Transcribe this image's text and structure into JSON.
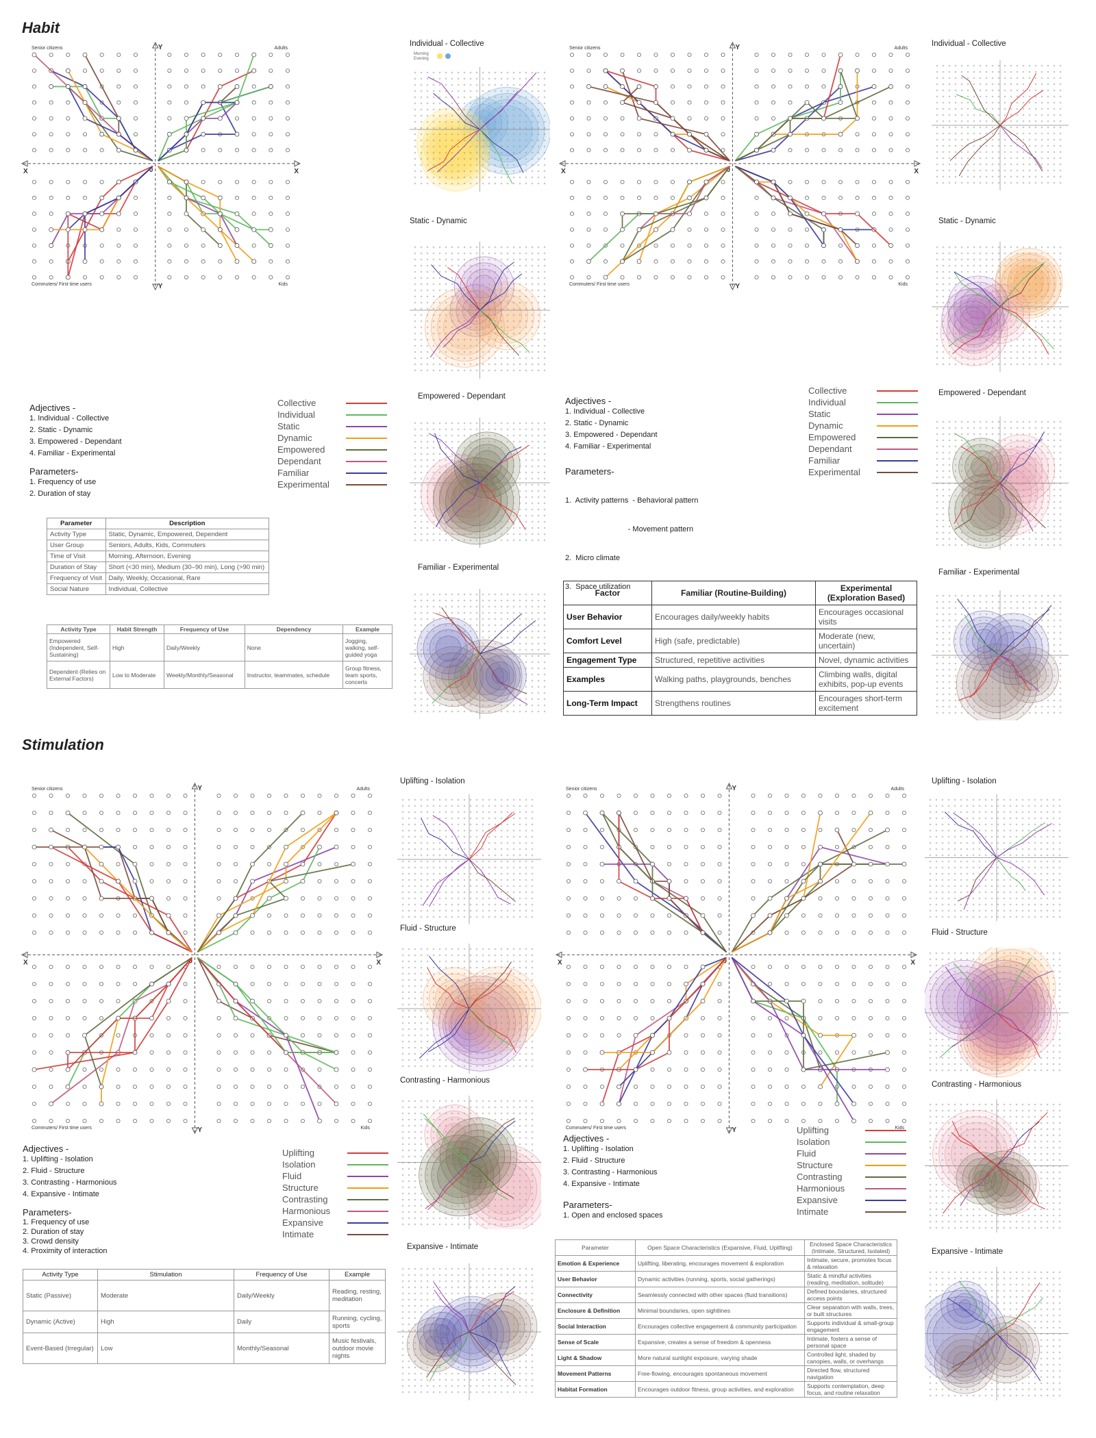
{
  "sections": [
    {
      "title": "Habit",
      "quadrants": {
        "top_left": "Senior citizens",
        "top_right": "Adults",
        "bottom_left": "Commuters/ First time users",
        "bottom_right": "Kids"
      },
      "axes": {
        "x": "X",
        "y": "Y",
        "origin": "0"
      },
      "mini_titles": [
        "Individual - Collective",
        "Static - Dynamic",
        "Empowered - Dependant",
        "Familiar - Experimental"
      ],
      "mini_titles_right": [
        "Individual - Collective",
        "Static - Dynamic",
        "Empowered - Dependant",
        "Familiar - Experimental"
      ],
      "mini_legend": [
        "Morning",
        "Evening"
      ],
      "left_block": {
        "adjectives_head": "Adjectives -",
        "adjectives": [
          "1.  Individual - Collective",
          "2.  Static - Dynamic",
          "3.  Empowered - Dependant",
          "4.  Familiar - Experimental"
        ],
        "parameters_head": "Parameters-",
        "parameters": [
          "1.  Frequency of use",
          "2.  Duration of stay"
        ]
      },
      "right_block": {
        "adjectives_head": "Adjectives -",
        "adjectives": [
          "1.  Individual - Collective",
          "2.  Static - Dynamic",
          "3.  Empowered - Dependant",
          "4.  Familiar - Experimental"
        ],
        "parameters_head": "Parameters-",
        "parameters": [
          "1.  Activity patterns  - Behavioral pattern",
          "                              - Movement pattern",
          "2.  Micro climate",
          "3.  Space utilization"
        ]
      },
      "legend_left": [
        {
          "name": "Collective",
          "color": "#d23b3b"
        },
        {
          "name": "Individual",
          "color": "#5cb85c"
        },
        {
          "name": "Static",
          "color": "#8e44ad"
        },
        {
          "name": "Dynamic",
          "color": "#f39c12"
        },
        {
          "name": "Empowered",
          "color": "#5d6d3f"
        },
        {
          "name": "Dependant",
          "color": "#c0587e"
        },
        {
          "name": "Familiar",
          "color": "#3b3b9e"
        },
        {
          "name": "Experimental",
          "color": "#7b4a3a"
        }
      ],
      "legend_right": [
        {
          "name": "Collective",
          "color": "#d23b3b"
        },
        {
          "name": "Individual",
          "color": "#5cb85c"
        },
        {
          "name": "Static",
          "color": "#8e44ad"
        },
        {
          "name": "Dynamic",
          "color": "#f39c12"
        },
        {
          "name": "Empowered",
          "color": "#5d6d3f"
        },
        {
          "name": "Dependant",
          "color": "#c0587e"
        },
        {
          "name": "Familiar",
          "color": "#3b3b9e"
        },
        {
          "name": "Experimental",
          "color": "#7b4a3a"
        }
      ],
      "param_table": {
        "headers": [
          "Parameter",
          "Description"
        ],
        "rows": [
          [
            "Activity Type",
            "Static, Dynamic, Empowered, Dependent"
          ],
          [
            "User Group",
            "Seniors, Adults, Kids, Commuters"
          ],
          [
            "Time of Visit",
            "Morning, Afternoon, Evening"
          ],
          [
            "Duration of Stay",
            "Short (<30 min), Medium (30–90 min), Long (>90 min)"
          ],
          [
            "Frequency of Visit",
            "Daily, Weekly, Occasional, Rare"
          ],
          [
            "Social Nature",
            "Individual, Collective"
          ]
        ]
      },
      "activity_table": {
        "headers": [
          "Activity Type",
          "Habit Strength",
          "Frequency of Use",
          "Dependency",
          "Example"
        ],
        "rows": [
          [
            "Empowered (Independent, Self-Sustaining)",
            "High",
            "Daily/Weekly",
            "None",
            "Jogging, walking, self-guided yoga"
          ],
          [
            "Dependent (Relies on External Factors)",
            "Low to Moderate",
            "Weekly/Monthly/Seasonal",
            "Instructor, teammates, schedule",
            "Group fitness, team sports, concerts"
          ]
        ]
      },
      "factor_table": {
        "headers": [
          "Factor",
          "Familiar (Routine-Building)",
          "Experimental (Exploration Based)"
        ],
        "rows": [
          [
            "User Behavior",
            "Encourages daily/weekly habits",
            "Encourages occasional visits"
          ],
          [
            "Comfort Level",
            "High (safe, predictable)",
            "Moderate (new, uncertain)"
          ],
          [
            "Engagement Type",
            "Structured, repetitive activities",
            "Novel, dynamic activities"
          ],
          [
            "Examples",
            "Walking paths, playgrounds, benches",
            "Climbing walls, digital exhibits, pop-up events"
          ],
          [
            "Long-Term Impact",
            "Strengthens routines",
            "Encourages short-term excitement"
          ]
        ]
      }
    },
    {
      "title": "Stimulation",
      "quadrants": {
        "top_left": "Senior citizens",
        "top_right": "Adults",
        "bottom_left": "Commuters/ First time users",
        "bottom_right": "Kids"
      },
      "axes": {
        "x": "X",
        "y": "Y",
        "origin": "0"
      },
      "mini_titles": [
        "Uplifting - Isolation",
        "Fluid - Structure",
        "Contrasting - Harmonious",
        "Expansive - Intimate"
      ],
      "mini_titles_right": [
        "Uplifting - Isolation",
        "Fluid - Structure",
        "Contrasting - Harmonious",
        "Expansive - Intimate"
      ],
      "left_block": {
        "adjectives_head": "Adjectives -",
        "adjectives": [
          "1.  Uplifting - Isolation",
          "2.  Fluid - Structure",
          "3.  Contrasting - Harmonious",
          "4.  Expansive - Intimate"
        ],
        "parameters_head": "Parameters-",
        "parameters": [
          "1.  Frequency of use",
          "2.  Duration of stay",
          "3.  Crowd density",
          "4.  Proximity of interaction"
        ]
      },
      "right_block": {
        "adjectives_head": "Adjectives -",
        "adjectives": [
          "1.  Uplifting - Isolation",
          "2.  Fluid - Structure",
          "3.  Contrasting - Harmonious",
          "4.  Expansive - Intimate"
        ],
        "parameters_head": "Parameters-",
        "parameters": [
          "1.  Open and enclosed spaces"
        ]
      },
      "legend_left": [
        {
          "name": "Uplifting",
          "color": "#d23b3b"
        },
        {
          "name": "Isolation",
          "color": "#5cb85c"
        },
        {
          "name": "Fluid",
          "color": "#8e44ad"
        },
        {
          "name": "Structure",
          "color": "#f39c12"
        },
        {
          "name": "Contrasting",
          "color": "#5d6d3f"
        },
        {
          "name": "Harmonious",
          "color": "#c0587e"
        },
        {
          "name": "Expansive",
          "color": "#3b3b9e"
        },
        {
          "name": "Intimate",
          "color": "#7b4a3a"
        }
      ],
      "legend_right": [
        {
          "name": "Uplifting",
          "color": "#d23b3b"
        },
        {
          "name": "Isolation",
          "color": "#5cb85c"
        },
        {
          "name": "Fluid",
          "color": "#8e44ad"
        },
        {
          "name": "Structure",
          "color": "#f39c12"
        },
        {
          "name": "Contrasting",
          "color": "#5d6d3f"
        },
        {
          "name": "Harmonious",
          "color": "#c0587e"
        },
        {
          "name": "Expansive",
          "color": "#3b3b9e"
        },
        {
          "name": "Intimate",
          "color": "#7b4a3a"
        }
      ],
      "stim_table": {
        "headers": [
          "Activity Type",
          "Stimulation",
          "Frequency of Use",
          "Example"
        ],
        "rows": [
          [
            "Static (Passive)",
            "Moderate",
            "Daily/Weekly",
            "Reading, resting, meditation"
          ],
          [
            "Dynamic (Active)",
            "High",
            "Daily",
            "Running, cycling, sports"
          ],
          [
            "Event-Based (Irregular)",
            "Low",
            "Monthly/Seasonal",
            "Music festivals, outdoor movie nights"
          ]
        ]
      },
      "space_table": {
        "headers": [
          "Parameter",
          "Open Space Characteristics (Expansive, Fluid, Uplifting)",
          "Enclosed Space Characteristics (Intimate, Structured, Isolated)"
        ],
        "rows": [
          [
            "Emotion & Experience",
            "Uplifting, liberating, encourages movement & exploration",
            "Intimate, secure, promotes focus & relaxation"
          ],
          [
            "User Behavior",
            "Dynamic activities (running, sports, social gatherings)",
            "Static & mindful activities (reading, meditation, solitude)"
          ],
          [
            "Connectivity",
            "Seamlessly connected with other spaces (fluid transitions)",
            "Defined boundaries, structured access points"
          ],
          [
            "Enclosure & Definition",
            "Minimal boundaries, open sightlines",
            "Clear separation with walls, trees, or built structures"
          ],
          [
            "Social Interaction",
            "Encourages collective engagement & community participation",
            "Supports individual & small-group engagement"
          ],
          [
            "Sense of Scale",
            "Expansive, creates a sense of freedom & openness",
            "Intimate, fosters a sense of personal space"
          ],
          [
            "Light & Shadow",
            "More natural sunlight exposure, varying shade",
            "Controlled light, shaded by canopies, walls, or overhangs"
          ],
          [
            "Movement Patterns",
            "Free-flowing, encourages spontaneous movement",
            "Directed flow, structured navigation"
          ],
          [
            "Habitat Formation",
            "Encourages outdoor fitness, group activities, and exploration",
            "Supports contemplation, deep focus, and routine relaxation"
          ]
        ]
      }
    }
  ],
  "colors": {
    "blob_blue": "#6fa8dc",
    "blob_yellow": "#ffe066",
    "blob_purple": "#9b59b6",
    "blob_orange": "#f5a65b",
    "blob_pink": "#e8899a",
    "blob_olive": "#6b6b4e",
    "blob_brown": "#8d6e63",
    "blob_indigo": "#5b5bb5"
  }
}
